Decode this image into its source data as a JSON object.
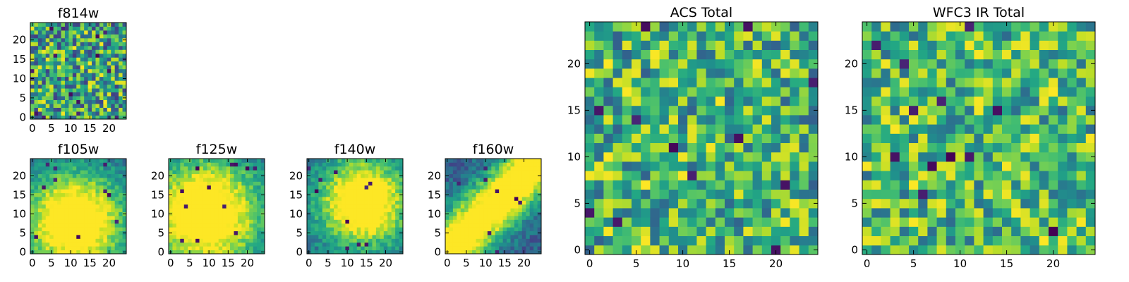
{
  "chart_data": [
    {
      "id": "f814w",
      "type": "heatmap",
      "title": "f814w",
      "colormap": "viridis",
      "size": 25,
      "xticks": [
        "0",
        "5",
        "10",
        "15",
        "20"
      ],
      "yticks": [
        "0",
        "5",
        "10",
        "15",
        "20"
      ],
      "xlim": [
        -0.5,
        24.5
      ],
      "ylim": [
        -0.5,
        24.5
      ],
      "pattern": {
        "kind": "noise",
        "seed": 814,
        "low": 0.18,
        "high": 1.0,
        "dark_cells": 14
      }
    },
    {
      "id": "f105w",
      "type": "heatmap",
      "title": "f105w",
      "colormap": "viridis",
      "size": 25,
      "xticks": [
        "0",
        "5",
        "10",
        "15",
        "20"
      ],
      "yticks": [
        "0",
        "5",
        "10",
        "15",
        "20"
      ],
      "xlim": [
        -0.5,
        24.5
      ],
      "ylim": [
        -0.5,
        24.5
      ],
      "pattern": {
        "kind": "smooth",
        "seed": 105,
        "center": [
          11,
          8
        ],
        "spread": 9,
        "dark_cells": 10
      }
    },
    {
      "id": "f125w",
      "type": "heatmap",
      "title": "f125w",
      "colormap": "viridis",
      "size": 25,
      "xticks": [
        "0",
        "5",
        "10",
        "15",
        "20"
      ],
      "yticks": [
        "0",
        "5",
        "10",
        "15",
        "20"
      ],
      "xlim": [
        -0.5,
        24.5
      ],
      "ylim": [
        -0.5,
        24.5
      ],
      "pattern": {
        "kind": "smooth",
        "seed": 125,
        "center": [
          9,
          10
        ],
        "spread": 10,
        "dark_cells": 12
      }
    },
    {
      "id": "f140w",
      "type": "heatmap",
      "title": "f140w",
      "colormap": "viridis",
      "size": 25,
      "xticks": [
        "0",
        "5",
        "10",
        "15",
        "20"
      ],
      "yticks": [
        "0",
        "5",
        "10",
        "15",
        "20"
      ],
      "xlim": [
        -0.5,
        24.5
      ],
      "ylim": [
        -0.5,
        24.5
      ],
      "pattern": {
        "kind": "smooth",
        "seed": 140,
        "center": [
          14,
          13
        ],
        "spread": 8,
        "dark_cells": 10
      }
    },
    {
      "id": "f160w",
      "type": "heatmap",
      "title": "f160w",
      "colormap": "viridis",
      "size": 25,
      "xticks": [
        "0",
        "5",
        "10",
        "15",
        "20"
      ],
      "yticks": [
        "0",
        "5",
        "10",
        "15",
        "20"
      ],
      "xlim": [
        -0.5,
        24.5
      ],
      "ylim": [
        -0.5,
        24.5
      ],
      "pattern": {
        "kind": "diagonal",
        "seed": 160,
        "spread": 7,
        "dark_cells": 8
      }
    },
    {
      "id": "acs_total",
      "type": "heatmap",
      "title": "ACS Total",
      "colormap": "viridis",
      "size": 25,
      "xticks": [
        "0",
        "5",
        "10",
        "15",
        "20"
      ],
      "yticks": [
        "0",
        "5",
        "10",
        "15",
        "20"
      ],
      "xlim": [
        -0.5,
        24.5
      ],
      "ylim": [
        -0.5,
        24.5
      ],
      "pattern": {
        "kind": "noise",
        "seed": 2024,
        "low": 0.3,
        "high": 1.0,
        "dark_cells": 12
      }
    },
    {
      "id": "wfc3_ir_total",
      "type": "heatmap",
      "title": "WFC3 IR Total",
      "colormap": "viridis",
      "size": 25,
      "xticks": [
        "0",
        "5",
        "10",
        "15",
        "20"
      ],
      "yticks": [
        "0",
        "5",
        "10",
        "15",
        "20"
      ],
      "xlim": [
        -0.5,
        24.5
      ],
      "ylim": [
        -0.5,
        24.5
      ],
      "pattern": {
        "kind": "noise",
        "seed": 3030,
        "low": 0.35,
        "high": 1.0,
        "dark_cells": 12
      }
    }
  ]
}
